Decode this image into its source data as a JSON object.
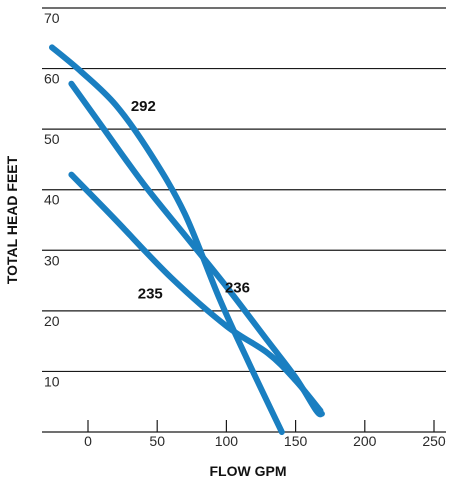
{
  "chart_data": {
    "type": "line",
    "xlabel": "FLOW GPM",
    "ylabel": "TOTAL HEAD FEET",
    "xlim": [
      -30,
      250
    ],
    "ylim": [
      0,
      70
    ],
    "x_ticks": [
      0,
      50,
      100,
      150,
      200,
      250
    ],
    "y_ticks": [
      10,
      20,
      30,
      40,
      50,
      60,
      70
    ],
    "grid": "horizontal",
    "line_color": "#1a7fc1",
    "series": [
      {
        "name": "292",
        "points": [
          [
            -26,
            63.5
          ],
          [
            -5,
            59.5
          ],
          [
            20,
            54
          ],
          [
            45,
            46
          ],
          [
            70,
            36
          ],
          [
            95,
            22
          ],
          [
            115,
            12
          ],
          [
            140,
            0
          ]
        ]
      },
      {
        "name": "236",
        "points": [
          [
            -12,
            57.5
          ],
          [
            10,
            50.5
          ],
          [
            40,
            41
          ],
          [
            70,
            32.5
          ],
          [
            100,
            24
          ],
          [
            130,
            15
          ],
          [
            150,
            9
          ],
          [
            165,
            3.5
          ],
          [
            169,
            3
          ]
        ]
      },
      {
        "name": "235",
        "points": [
          [
            -12,
            42.5
          ],
          [
            20,
            35
          ],
          [
            60,
            25.5
          ],
          [
            100,
            17.5
          ],
          [
            130,
            13
          ],
          [
            150,
            8.5
          ],
          [
            168,
            3.5
          ]
        ]
      }
    ],
    "labels": [
      {
        "text": "292",
        "x": 40,
        "y": 53
      },
      {
        "text": "236",
        "x": 108,
        "y": 23
      },
      {
        "text": "235",
        "x": 45,
        "y": 22
      }
    ]
  }
}
